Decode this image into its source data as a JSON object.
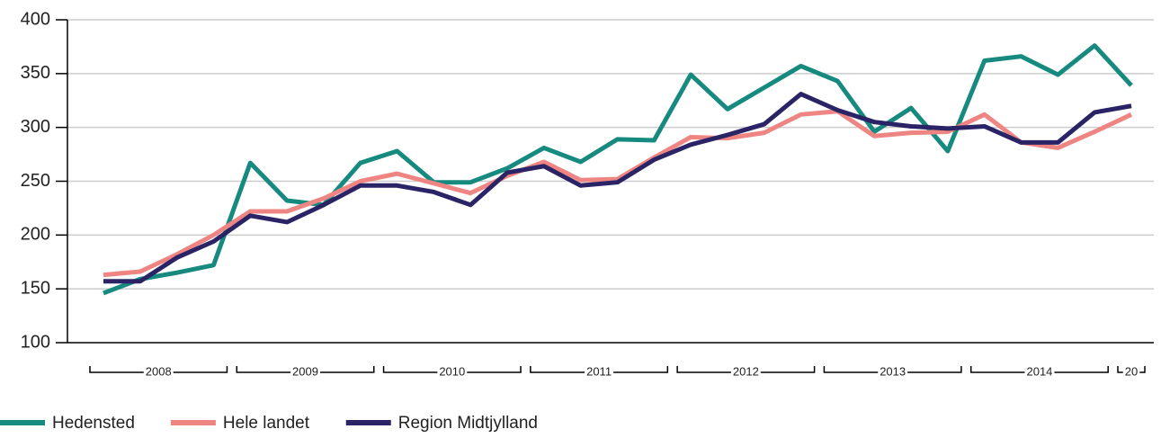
{
  "chart_data": {
    "type": "line",
    "x_groups": [
      "2008",
      "2009",
      "2010",
      "2011",
      "2012",
      "2013",
      "2014",
      "20"
    ],
    "categories": [
      null,
      null,
      null,
      null,
      null,
      null,
      null,
      null,
      null,
      null,
      null,
      null,
      null,
      null,
      null,
      null,
      null,
      null,
      null,
      null,
      null,
      null,
      null,
      null,
      null,
      null,
      null,
      null,
      null
    ],
    "series": [
      {
        "name": "Hedensted",
        "color": "#178a80",
        "values": [
          146,
          159,
          165,
          172,
          267,
          232,
          228,
          267,
          278,
          249,
          249,
          262,
          281,
          268,
          289,
          288,
          349,
          317,
          337,
          357,
          343,
          296,
          318,
          278,
          362,
          366,
          349,
          376,
          339
        ]
      },
      {
        "name": "Hele landet",
        "color": "#ee8582",
        "values": [
          163,
          166,
          182,
          200,
          222,
          222,
          234,
          250,
          257,
          248,
          239,
          255,
          268,
          251,
          252,
          272,
          291,
          290,
          295,
          312,
          315,
          292,
          295,
          296,
          312,
          286,
          281,
          296,
          312
        ]
      },
      {
        "name": "Region Midtjylland",
        "color": "#2a2466",
        "values": [
          157,
          157,
          179,
          194,
          218,
          212,
          228,
          246,
          246,
          240,
          228,
          258,
          264,
          246,
          249,
          270,
          284,
          293,
          303,
          331,
          316,
          305,
          301,
          299,
          301,
          286,
          286,
          314,
          320
        ]
      }
    ],
    "ylim": [
      100,
      400
    ],
    "yticks": [
      100,
      150,
      200,
      250,
      300,
      350,
      400
    ],
    "grid": true,
    "legend": "bottom"
  }
}
